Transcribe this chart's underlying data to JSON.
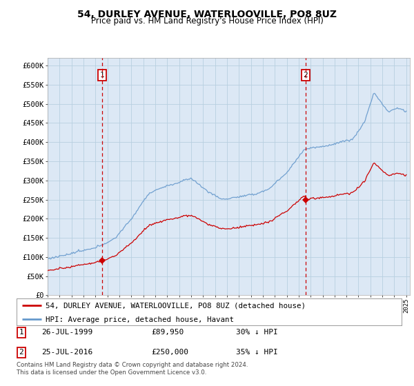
{
  "title": "54, DURLEY AVENUE, WATERLOOVILLE, PO8 8UZ",
  "subtitle": "Price paid vs. HM Land Registry's House Price Index (HPI)",
  "ylim": [
    0,
    620000
  ],
  "yticks": [
    0,
    50000,
    100000,
    150000,
    200000,
    250000,
    300000,
    350000,
    400000,
    450000,
    500000,
    550000,
    600000
  ],
  "ytick_labels": [
    "£0",
    "£50K",
    "£100K",
    "£150K",
    "£200K",
    "£250K",
    "£300K",
    "£350K",
    "£400K",
    "£450K",
    "£500K",
    "£550K",
    "£600K"
  ],
  "plot_bg_color": "#dce8f5",
  "grid_color": "#b8cfe0",
  "sale1_x": 1999.57,
  "sale1_price": 89950,
  "sale2_x": 2016.57,
  "sale2_price": 250000,
  "legend_red_label": "54, DURLEY AVENUE, WATERLOOVILLE, PO8 8UZ (detached house)",
  "legend_blue_label": "HPI: Average price, detached house, Havant",
  "footer": "Contains HM Land Registry data © Crown copyright and database right 2024.\nThis data is licensed under the Open Government Licence v3.0.",
  "red_line_color": "#cc0000",
  "blue_line_color": "#6699cc",
  "vline_color": "#cc0000",
  "marker_color": "#cc0000",
  "xlim_left": 1995.0,
  "xlim_right": 2025.3
}
